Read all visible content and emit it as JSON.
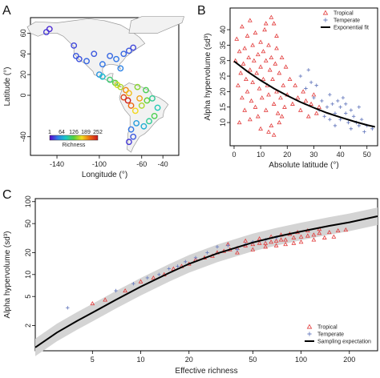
{
  "panels": {
    "a": {
      "letter": "A"
    },
    "b": {
      "letter": "B"
    },
    "c": {
      "letter": "C"
    }
  },
  "chart_data": [
    {
      "panel": "A",
      "type": "scatter",
      "title": "",
      "xlabel": "Longitude (°)",
      "ylabel": "Latitude (°)",
      "xlim": [
        -165,
        -25
      ],
      "ylim": [
        -58,
        75
      ],
      "xticks": [
        -140,
        -100,
        -60,
        -40
      ],
      "yticks": [
        -40,
        0,
        20,
        40,
        60
      ],
      "colorbar": {
        "label": "Richness",
        "ticks": [
          "1",
          "64",
          "126",
          "189",
          "252"
        ],
        "colors": [
          "#5a00c9",
          "#2f7fe8",
          "#19c8c8",
          "#55d23c",
          "#f2dd1e",
          "#ee6b10",
          "#c8161e"
        ]
      },
      "sites": [
        {
          "lon": -150,
          "lat": 61,
          "richness": 20
        },
        {
          "lon": -147,
          "lat": 64,
          "richness": 15
        },
        {
          "lon": -124,
          "lat": 48,
          "richness": 25
        },
        {
          "lon": -122,
          "lat": 38,
          "richness": 30
        },
        {
          "lon": -119,
          "lat": 35,
          "richness": 28
        },
        {
          "lon": -112,
          "lat": 33,
          "richness": 35
        },
        {
          "lon": -105,
          "lat": 40,
          "richness": 30
        },
        {
          "lon": -97,
          "lat": 30,
          "richness": 40
        },
        {
          "lon": -90,
          "lat": 38,
          "richness": 35
        },
        {
          "lon": -84,
          "lat": 35,
          "richness": 40
        },
        {
          "lon": -80,
          "lat": 26,
          "richness": 45
        },
        {
          "lon": -77,
          "lat": 40,
          "richness": 35
        },
        {
          "lon": -72,
          "lat": 43,
          "richness": 30
        },
        {
          "lon": -68,
          "lat": 46,
          "richness": 25
        },
        {
          "lon": -100,
          "lat": 20,
          "richness": 55
        },
        {
          "lon": -97,
          "lat": 18,
          "richness": 80
        },
        {
          "lon": -90,
          "lat": 15,
          "richness": 110
        },
        {
          "lon": -85,
          "lat": 12,
          "richness": 130
        },
        {
          "lon": -83,
          "lat": 10,
          "richness": 160
        },
        {
          "lon": -80,
          "lat": 8,
          "richness": 150
        },
        {
          "lon": -75,
          "lat": 5,
          "richness": 200
        },
        {
          "lon": -72,
          "lat": 2,
          "richness": 180
        },
        {
          "lon": -77,
          "lat": -2,
          "richness": 230
        },
        {
          "lon": -73,
          "lat": -5,
          "richness": 245
        },
        {
          "lon": -70,
          "lat": -10,
          "richness": 210
        },
        {
          "lon": -66,
          "lat": -15,
          "richness": 170
        },
        {
          "lon": -62,
          "lat": -3,
          "richness": 190
        },
        {
          "lon": -60,
          "lat": -10,
          "richness": 150
        },
        {
          "lon": -55,
          "lat": -5,
          "richness": 130
        },
        {
          "lon": -50,
          "lat": -3,
          "richness": 100
        },
        {
          "lon": -45,
          "lat": -12,
          "richness": 90
        },
        {
          "lon": -48,
          "lat": -20,
          "richness": 120
        },
        {
          "lon": -53,
          "lat": -25,
          "richness": 100
        },
        {
          "lon": -58,
          "lat": -30,
          "richness": 70
        },
        {
          "lon": -65,
          "lat": -27,
          "richness": 60
        },
        {
          "lon": -70,
          "lat": -33,
          "richness": 40
        },
        {
          "lon": -68,
          "lat": -40,
          "richness": 30
        },
        {
          "lon": -72,
          "lat": -45,
          "richness": 20
        },
        {
          "lon": -56,
          "lat": 5,
          "richness": 120
        },
        {
          "lon": -64,
          "lat": 8,
          "richness": 140
        }
      ]
    },
    {
      "panel": "B",
      "type": "scatter",
      "title": "",
      "xlabel": "Absolute latitude (°)",
      "ylabel": "Alpha hypervolume (sd³)",
      "xlim": [
        -1.5,
        54
      ],
      "ylim": [
        2.5,
        47
      ],
      "xticks": [
        0,
        10,
        20,
        30,
        40,
        50
      ],
      "yticks": [
        10,
        15,
        20,
        25,
        30,
        35,
        40
      ],
      "legend_position": "top-right",
      "series": [
        {
          "name": "Tropical",
          "marker": "triangle",
          "color": "#e23a3a",
          "points": [
            [
              0.5,
              30
            ],
            [
              1,
              37
            ],
            [
              1.5,
              22
            ],
            [
              2,
              33
            ],
            [
              2.5,
              26
            ],
            [
              3,
              41
            ],
            [
              3,
              18
            ],
            [
              3.5,
              29
            ],
            [
              4,
              34
            ],
            [
              4,
              14
            ],
            [
              4.5,
              24
            ],
            [
              5,
              38
            ],
            [
              5,
              20
            ],
            [
              5.5,
              31
            ],
            [
              6,
              27
            ],
            [
              6,
              43
            ],
            [
              6.5,
              17
            ],
            [
              7,
              35
            ],
            [
              7,
              23
            ],
            [
              7.5,
              30
            ],
            [
              8,
              15
            ],
            [
              8,
              39
            ],
            [
              8.5,
              26
            ],
            [
              9,
              32
            ],
            [
              9,
              12
            ],
            [
              9.5,
              21
            ],
            [
              10,
              36
            ],
            [
              10,
              28
            ],
            [
              10.5,
              18
            ],
            [
              11,
              33
            ],
            [
              11,
              24
            ],
            [
              11.5,
              40
            ],
            [
              12,
              14
            ],
            [
              12,
              30
            ],
            [
              12.5,
              22
            ],
            [
              13,
              35
            ],
            [
              13,
              19
            ],
            [
              13.5,
              27
            ],
            [
              14,
              31
            ],
            [
              14,
              9
            ],
            [
              14.5,
              24
            ],
            [
              15,
              42
            ],
            [
              15,
              16
            ],
            [
              15.5,
              29
            ],
            [
              16,
              20
            ],
            [
              16,
              34
            ],
            [
              16.5,
              13
            ],
            [
              17,
              26
            ],
            [
              17.5,
              18
            ],
            [
              18,
              31
            ],
            [
              18.5,
              22
            ],
            [
              19,
              15
            ],
            [
              19.5,
              28
            ],
            [
              20,
              19
            ],
            [
              21,
              24
            ],
            [
              22,
              16
            ],
            [
              23,
              22
            ],
            [
              24,
              18
            ],
            [
              25,
              14
            ],
            [
              26,
              20
            ],
            [
              27,
              17
            ],
            [
              28,
              12
            ],
            [
              29,
              16
            ],
            [
              30,
              19
            ],
            [
              31,
              13
            ],
            [
              32,
              15
            ],
            [
              2,
              10
            ],
            [
              6,
              11
            ],
            [
              10,
              8
            ],
            [
              12,
              42
            ],
            [
              13,
              7
            ],
            [
              14,
              44
            ],
            [
              15,
              6
            ],
            [
              16,
              38
            ],
            [
              17,
              10
            ],
            [
              18,
              12
            ]
          ]
        },
        {
          "name": "Temperate",
          "marker": "plus",
          "color": "#6c7fc0",
          "points": [
            [
              25,
              25
            ],
            [
              27,
              21
            ],
            [
              28,
              27
            ],
            [
              29,
              23
            ],
            [
              30,
              18
            ],
            [
              31,
              22
            ],
            [
              32,
              14
            ],
            [
              33,
              17
            ],
            [
              34,
              12
            ],
            [
              35,
              15
            ],
            [
              36,
              11
            ],
            [
              36,
              19
            ],
            [
              37,
              16
            ],
            [
              38,
              13
            ],
            [
              38,
              9
            ],
            [
              39,
              17
            ],
            [
              40,
              15
            ],
            [
              40,
              11
            ],
            [
              41,
              18
            ],
            [
              42,
              13
            ],
            [
              42,
              16
            ],
            [
              43,
              10
            ],
            [
              44,
              14
            ],
            [
              44,
              8
            ],
            [
              45,
              12
            ],
            [
              46,
              10
            ],
            [
              47,
              15
            ],
            [
              47,
              9
            ],
            [
              48,
              11
            ],
            [
              49,
              7
            ],
            [
              50,
              9
            ],
            [
              52,
              8
            ]
          ]
        },
        {
          "name": "Exponential fit",
          "type": "line",
          "color": "#000000",
          "x": [
            0,
            5,
            10,
            15,
            20,
            25,
            30,
            35,
            40,
            45,
            50,
            53
          ],
          "y": [
            29.8,
            26.5,
            23.6,
            21.0,
            18.7,
            16.6,
            14.8,
            13.1,
            11.7,
            10.4,
            9.2,
            8.6
          ]
        }
      ]
    },
    {
      "panel": "C",
      "type": "scatter",
      "title": "",
      "xlabel": "Effective richness",
      "ylabel": "Alpha hypervolume (sd³)",
      "xscale": "log",
      "yscale": "log",
      "xlim": [
        2.2,
        300
      ],
      "ylim": [
        0.9,
        110
      ],
      "xticks": [
        5,
        10,
        20,
        50,
        100,
        200
      ],
      "yticks": [
        2,
        5,
        10,
        20,
        50,
        100
      ],
      "legend_position": "bottom-right",
      "series": [
        {
          "name": "Tropical",
          "marker": "triangle",
          "color": "#e23a3a",
          "points": [
            [
              5,
              4
            ],
            [
              6,
              4.5
            ],
            [
              8,
              6
            ],
            [
              10,
              8
            ],
            [
              12,
              9
            ],
            [
              14,
              10
            ],
            [
              16,
              12
            ],
            [
              18,
              13
            ],
            [
              20,
              14
            ],
            [
              22,
              16
            ],
            [
              25,
              17
            ],
            [
              28,
              18
            ],
            [
              30,
              20
            ],
            [
              33,
              21
            ],
            [
              36,
              22
            ],
            [
              40,
              23
            ],
            [
              45,
              25
            ],
            [
              50,
              26
            ],
            [
              55,
              27
            ],
            [
              60,
              27
            ],
            [
              65,
              28
            ],
            [
              70,
              29
            ],
            [
              75,
              30
            ],
            [
              80,
              30
            ],
            [
              90,
              32
            ],
            [
              100,
              33
            ],
            [
              110,
              34
            ],
            [
              120,
              35
            ],
            [
              130,
              37
            ],
            [
              150,
              38
            ],
            [
              170,
              40
            ],
            [
              190,
              41
            ],
            [
              40,
              20
            ],
            [
              50,
              22
            ],
            [
              60,
              24
            ],
            [
              70,
              25
            ],
            [
              80,
              26
            ],
            [
              90,
              27
            ],
            [
              100,
              28
            ],
            [
              120,
              30
            ],
            [
              140,
              32
            ],
            [
              160,
              33
            ],
            [
              35,
              26
            ],
            [
              45,
              29
            ],
            [
              55,
              31
            ],
            [
              65,
              33
            ],
            [
              75,
              35
            ],
            [
              85,
              36
            ],
            [
              95,
              38
            ],
            [
              110,
              40
            ],
            [
              130,
              42
            ]
          ]
        },
        {
          "name": "Temperate",
          "marker": "plus",
          "color": "#6c7fc0",
          "points": [
            [
              3.5,
              3.5
            ],
            [
              7,
              6
            ],
            [
              9,
              7.5
            ],
            [
              11,
              9
            ],
            [
              13,
              10
            ],
            [
              15,
              12
            ],
            [
              17,
              13
            ],
            [
              19,
              15
            ],
            [
              22,
              17
            ],
            [
              26,
              20
            ],
            [
              30,
              24
            ],
            [
              35,
              25
            ],
            [
              40,
              22
            ],
            [
              45,
              26
            ],
            [
              50,
              28
            ],
            [
              60,
              30
            ],
            [
              70,
              32
            ]
          ]
        },
        {
          "name": "Sampling expectation",
          "type": "line",
          "color": "#000000",
          "x": [
            2.2,
            3,
            4,
            5,
            7,
            10,
            15,
            20,
            30,
            50,
            70,
            100,
            150,
            200,
            300
          ],
          "y": [
            1.0,
            1.6,
            2.3,
            3.0,
            4.5,
            6.8,
            10.5,
            14.0,
            19.5,
            27.5,
            33.0,
            39.0,
            46.5,
            52.0,
            63.0
          ]
        }
      ]
    }
  ]
}
